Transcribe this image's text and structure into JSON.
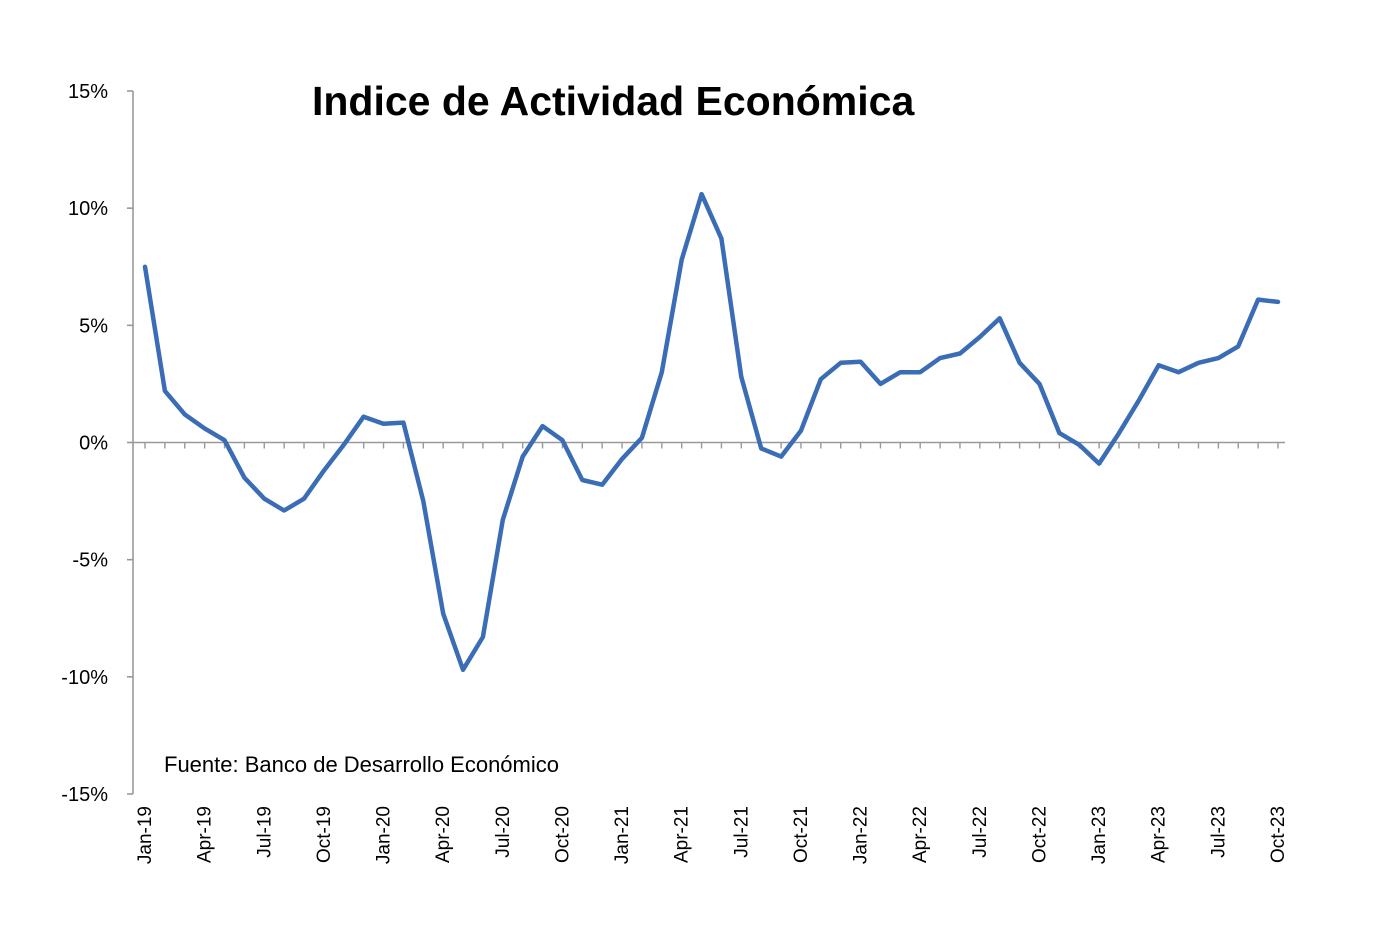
{
  "chart_data": {
    "type": "line",
    "title": "Indice de Actividad Económica",
    "source_note": "Fuente: Banco de Desarrollo Económico",
    "xlabel": "",
    "ylabel": "",
    "ylim": [
      -15,
      15
    ],
    "yticks": [
      15,
      10,
      5,
      0,
      -5,
      -10,
      -15
    ],
    "ytick_labels": [
      "15%",
      "10%",
      "5%",
      "0%",
      "-5%",
      "-10%",
      "-15%"
    ],
    "x_tick_labels": [
      "Jan-19",
      "Apr-19",
      "Jul-19",
      "Oct-19",
      "Jan-20",
      "Apr-20",
      "Jul-20",
      "Oct-20",
      "Jan-21",
      "Apr-21",
      "Jul-21",
      "Oct-21",
      "Jan-22",
      "Apr-22",
      "Jul-22",
      "Oct-22",
      "Jan-23",
      "Apr-23",
      "Jul-23",
      "Oct-23"
    ],
    "series": [
      {
        "name": "Indice de Actividad Económica",
        "color": "#3a6db5",
        "x": [
          "Jan-19",
          "Feb-19",
          "Mar-19",
          "Apr-19",
          "May-19",
          "Jun-19",
          "Jul-19",
          "Aug-19",
          "Sep-19",
          "Oct-19",
          "Nov-19",
          "Dec-19",
          "Jan-20",
          "Feb-20",
          "Mar-20",
          "Apr-20",
          "May-20",
          "Jun-20",
          "Jul-20",
          "Aug-20",
          "Sep-20",
          "Oct-20",
          "Nov-20",
          "Dec-20",
          "Jan-21",
          "Feb-21",
          "Mar-21",
          "Apr-21",
          "May-21",
          "Jun-21",
          "Jul-21",
          "Aug-21",
          "Sep-21",
          "Oct-21",
          "Nov-21",
          "Dec-21",
          "Jan-22",
          "Feb-22",
          "Mar-22",
          "Apr-22",
          "May-22",
          "Jun-22",
          "Jul-22",
          "Aug-22",
          "Sep-22",
          "Oct-22",
          "Nov-22",
          "Dec-22",
          "Jan-23",
          "Feb-23",
          "Mar-23",
          "Apr-23",
          "May-23",
          "Jun-23",
          "Jul-23",
          "Aug-23",
          "Sep-23",
          "Oct-23"
        ],
        "values": [
          7.5,
          2.2,
          1.2,
          0.6,
          0.1,
          -1.5,
          -2.4,
          -2.9,
          -2.4,
          -1.2,
          -0.1,
          1.1,
          0.8,
          0.85,
          -2.5,
          -7.3,
          -9.7,
          -8.3,
          -3.3,
          -0.6,
          0.7,
          0.1,
          -1.6,
          -1.8,
          -0.7,
          0.2,
          3.0,
          7.8,
          10.6,
          8.7,
          2.8,
          -0.25,
          -0.6,
          0.5,
          2.7,
          3.4,
          3.45,
          2.5,
          3.0,
          3.0,
          3.6,
          3.8,
          4.5,
          5.3,
          3.4,
          2.5,
          0.4,
          -0.1,
          -0.9,
          0.4,
          1.8,
          3.3,
          3.0,
          3.4,
          3.6,
          4.1,
          6.1,
          6.0
        ]
      }
    ],
    "grid": false,
    "legend": "none"
  }
}
